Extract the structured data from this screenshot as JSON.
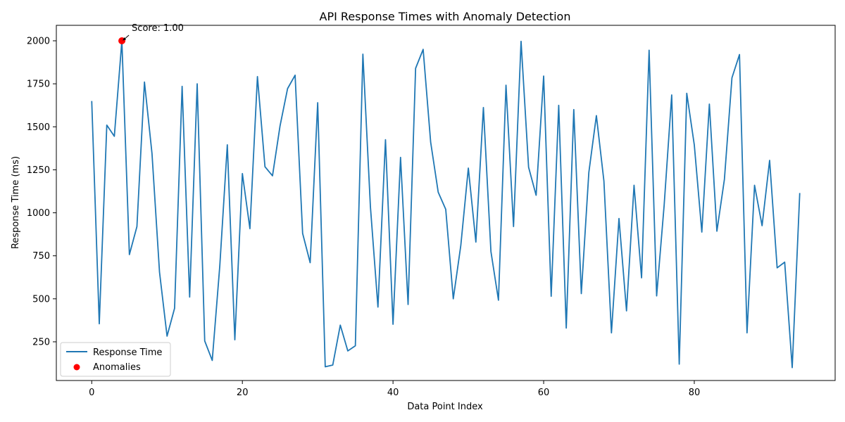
{
  "chart_data": {
    "type": "line",
    "title": "API Response Times with Anomaly Detection",
    "xlabel": "Data Point Index",
    "ylabel": "Response Time (ms)",
    "xlim": [
      -4.7,
      98.7
    ],
    "ylim": [
      25,
      2090
    ],
    "xticks": [
      0,
      20,
      40,
      60,
      80
    ],
    "yticks": [
      250,
      500,
      750,
      1000,
      1250,
      1500,
      1750,
      2000
    ],
    "grid": false,
    "legend_position": "lower left",
    "series": [
      {
        "name": "Response Time",
        "color": "#1f77b4",
        "values": [
          1650,
          355,
          1510,
          1445,
          2000,
          757,
          920,
          1760,
          1345,
          655,
          283,
          445,
          1735,
          510,
          1750,
          255,
          142,
          690,
          1395,
          262,
          1228,
          908,
          1792,
          1268,
          1215,
          1505,
          1722,
          1800,
          880,
          710,
          1640,
          105,
          115,
          347,
          197,
          227,
          1922,
          1035,
          452,
          1425,
          352,
          1322,
          467,
          1840,
          1950,
          1410,
          1120,
          1020,
          500,
          810,
          1260,
          830,
          1612,
          775,
          492,
          1742,
          920,
          1997,
          1265,
          1102,
          1795,
          515,
          1625,
          330,
          1600,
          530,
          1235,
          1565,
          1185,
          302,
          967,
          430,
          1160,
          622,
          1945,
          517,
          1045,
          1685,
          120,
          1695,
          1395,
          888,
          1632,
          893,
          1195,
          1785,
          1920,
          302,
          1160,
          925,
          1305,
          680,
          713,
          100,
          1115
        ]
      },
      {
        "name": "Anomalies",
        "color": "#ff0000",
        "points": [
          {
            "x": 4,
            "y": 2000
          }
        ]
      }
    ],
    "annotations": [
      {
        "text": "Score: 1.00",
        "x": 4,
        "y": 2000
      }
    ]
  }
}
